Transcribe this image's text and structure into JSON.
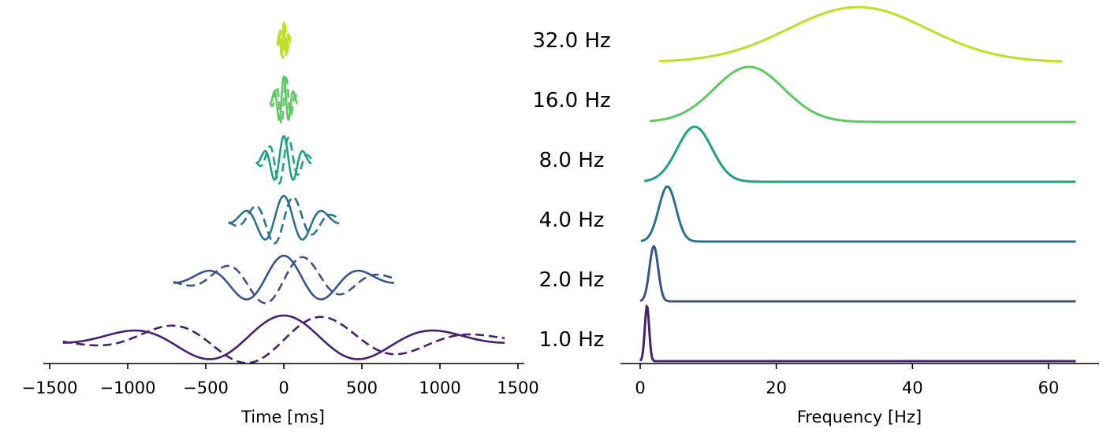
{
  "chart_data": [
    {
      "type": "line",
      "title": "",
      "xlabel": "Time [ms]",
      "ylabel": "",
      "xlim": [
        -1520,
        1520
      ],
      "xticks": [
        -1500,
        -1000,
        -500,
        0,
        500,
        1000,
        1500
      ],
      "xtick_labels": [
        "−1500",
        "−1000",
        "−500",
        "0",
        "500",
        "1000",
        "1500"
      ],
      "grid": false,
      "series_style": "solid = real part, dashed = imaginary part",
      "series": [
        {
          "freq_hz": 1.0,
          "label": "1.0 Hz",
          "color": "#46216f",
          "halfwidth_ms": 1415
        },
        {
          "freq_hz": 2.0,
          "label": "2.0 Hz",
          "color": "#3b528b",
          "halfwidth_ms": 707
        },
        {
          "freq_hz": 4.0,
          "label": "4.0 Hz",
          "color": "#2c728e",
          "halfwidth_ms": 354
        },
        {
          "freq_hz": 8.0,
          "label": "8.0 Hz",
          "color": "#21a085",
          "halfwidth_ms": 177
        },
        {
          "freq_hz": 16.0,
          "label": "16.0 Hz",
          "color": "#5ec962",
          "halfwidth_ms": 88
        },
        {
          "freq_hz": 32.0,
          "label": "32.0 Hz",
          "color": "#bddf26",
          "halfwidth_ms": 44
        }
      ]
    },
    {
      "type": "line",
      "title": "",
      "xlabel": "Frequency [Hz]",
      "ylabel": "",
      "xlim": [
        -1.5,
        67
      ],
      "xticks": [
        0,
        20,
        40,
        60
      ],
      "xtick_labels": [
        "0",
        "20",
        "40",
        "60"
      ],
      "grid": false,
      "series": [
        {
          "label": "1.0 Hz",
          "center_hz": 1,
          "sigma_hz": 0.32,
          "f_start": 0,
          "f_end": 64,
          "color": "#46216f"
        },
        {
          "label": "2.0 Hz",
          "center_hz": 2,
          "sigma_hz": 0.64,
          "f_start": 0,
          "f_end": 64,
          "color": "#3b528b"
        },
        {
          "label": "4.0 Hz",
          "center_hz": 4,
          "sigma_hz": 1.27,
          "f_start": 0.1,
          "f_end": 64,
          "color": "#2c728e"
        },
        {
          "label": "8.0 Hz",
          "center_hz": 8,
          "sigma_hz": 2.55,
          "f_start": 0.6,
          "f_end": 64,
          "color": "#21a085"
        },
        {
          "label": "16.0 Hz",
          "center_hz": 16,
          "sigma_hz": 5.1,
          "f_start": 1.4,
          "f_end": 64,
          "color": "#5ec962"
        },
        {
          "label": "32.0 Hz",
          "center_hz": 32,
          "sigma_hz": 10.2,
          "f_start": 2.8,
          "f_end": 62,
          "color": "#bddf26"
        }
      ]
    }
  ]
}
